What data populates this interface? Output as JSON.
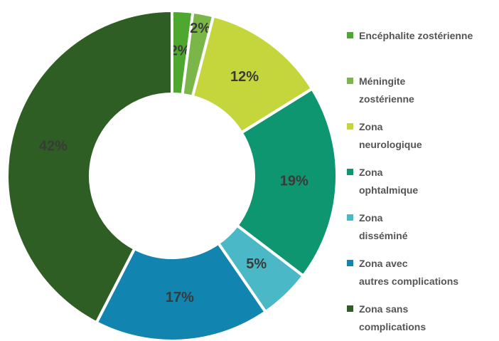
{
  "chart_data": {
    "type": "donut",
    "categories": [
      "Encéphalite zostérienne",
      "Méningite\nzostérienne",
      "Zona\nneurologique",
      "Zona\nophtalmique",
      "Zona\ndisséminé",
      "Zona avec\nautres complications",
      "Zona sans\ncomplications"
    ],
    "values": [
      2,
      2,
      12,
      19,
      5,
      17,
      42
    ],
    "value_labels": [
      "2%",
      "2%",
      "12%",
      "19%",
      "5%",
      "17%",
      "42%"
    ],
    "colors": [
      "#4ea72e",
      "#7ab648",
      "#c5d63d",
      "#0e9670",
      "#4bb8c8",
      "#1184b0",
      "#2e5e23"
    ],
    "legend": "right"
  }
}
